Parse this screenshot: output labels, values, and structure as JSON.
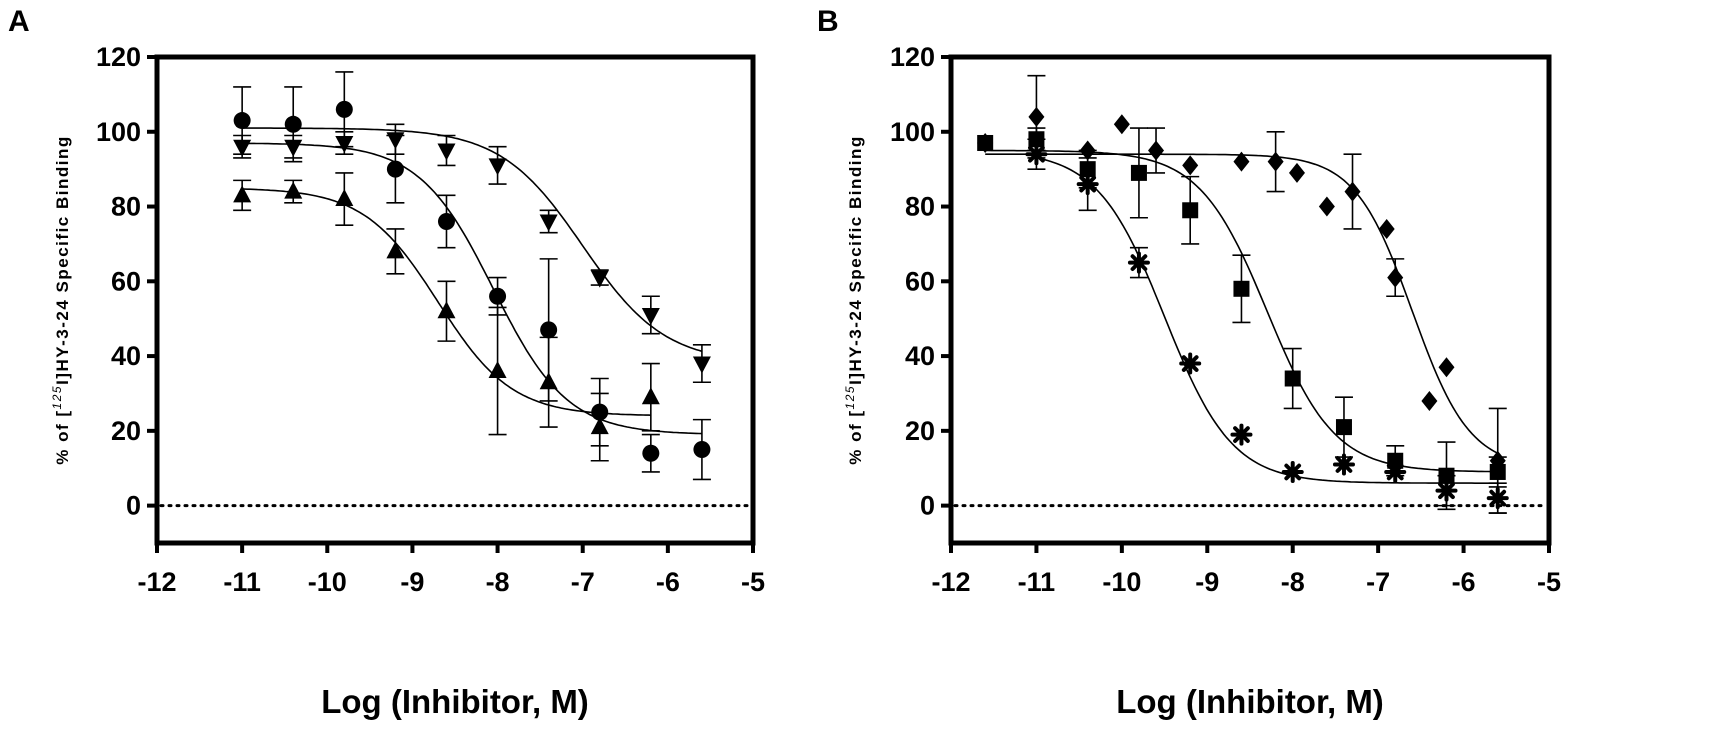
{
  "chart_data": [
    {
      "panel": "A",
      "type": "scatter",
      "xlabel": "Log (Inhibitor, M)",
      "ylabel_parts": {
        "prefix": "% of [",
        "superscript": "125",
        "suffix": "I]HY-3-24 Specific Binding"
      },
      "xlim": [
        -12,
        -5
      ],
      "ylim": [
        -10,
        120
      ],
      "xticks": [
        -12,
        -11,
        -10,
        -9,
        -8,
        -7,
        -6,
        -5
      ],
      "yticks": [
        0,
        20,
        40,
        60,
        80,
        100,
        120
      ],
      "xtick_labels": [
        "-12",
        "-11",
        "-10",
        "-9",
        "-8",
        "-7",
        "-6",
        "-5"
      ],
      "ytick_labels": [
        "0",
        "20",
        "40",
        "60",
        "80",
        "100",
        "120"
      ],
      "reference_line": {
        "y": 0,
        "style": "dotted"
      },
      "series": [
        {
          "name": "circle",
          "marker": "circle",
          "x": [
            -11.0,
            -10.4,
            -9.8,
            -9.2,
            -8.6,
            -8.0,
            -7.4,
            -6.8,
            -6.2,
            -5.6
          ],
          "y": [
            103,
            102,
            106,
            90,
            76,
            56,
            47,
            25,
            14,
            15
          ],
          "err": [
            9,
            10,
            10,
            9,
            7,
            5,
            19,
            9,
            5,
            8
          ],
          "fit": {
            "top": 97,
            "bottom": 19,
            "logIC50": -8.05,
            "hill": 1.0
          }
        },
        {
          "name": "triangle-down",
          "marker": "triangle-down",
          "x": [
            -11.0,
            -10.4,
            -9.8,
            -9.2,
            -8.6,
            -8.0,
            -7.4,
            -6.8,
            -6.2,
            -5.6
          ],
          "y": [
            96,
            96,
            97,
            98,
            95,
            91,
            76,
            61,
            51,
            38
          ],
          "err": [
            3,
            3,
            3,
            4,
            4,
            5,
            3,
            2,
            5,
            5
          ],
          "fit": {
            "top": 101,
            "bottom": 38,
            "logIC50": -7.0,
            "hill": 0.9
          }
        },
        {
          "name": "triangle-up",
          "marker": "triangle-up",
          "x": [
            -11.0,
            -10.4,
            -9.8,
            -9.2,
            -8.6,
            -8.0,
            -7.4,
            -6.8,
            -6.2
          ],
          "y": [
            83,
            84,
            82,
            68,
            52,
            36,
            33,
            21,
            29
          ],
          "err": [
            4,
            3,
            7,
            6,
            8,
            17,
            12,
            9,
            9
          ],
          "fit": {
            "top": 85,
            "bottom": 24,
            "logIC50": -8.7,
            "hill": 1.0
          }
        }
      ]
    },
    {
      "panel": "B",
      "type": "scatter",
      "xlabel": "Log (Inhibitor, M)",
      "ylabel_parts": {
        "prefix": "% of [",
        "superscript": "125",
        "suffix": "I]HY-3-24 Specific Binding"
      },
      "xlim": [
        -12,
        -5
      ],
      "ylim": [
        -10,
        120
      ],
      "xticks": [
        -12,
        -11,
        -10,
        -9,
        -8,
        -7,
        -6,
        -5
      ],
      "yticks": [
        0,
        20,
        40,
        60,
        80,
        100,
        120
      ],
      "xtick_labels": [
        "-12",
        "-11",
        "-10",
        "-9",
        "-8",
        "-7",
        "-6",
        "-5"
      ],
      "ytick_labels": [
        "0",
        "20",
        "40",
        "60",
        "80",
        "100",
        "120"
      ],
      "reference_line": {
        "y": 0,
        "style": "dotted"
      },
      "series": [
        {
          "name": "asterisk",
          "marker": "star",
          "x": [
            -11.0,
            -10.4,
            -9.8,
            -9.2,
            -8.6,
            -8.0,
            -7.4,
            -6.8,
            -6.2,
            -5.6
          ],
          "y": [
            94,
            86,
            65,
            38,
            19,
            9,
            11,
            9,
            4,
            2
          ],
          "err": [
            4,
            7,
            4,
            0,
            0,
            0,
            0,
            0,
            4,
            4
          ],
          "fit": {
            "top": 95,
            "bottom": 6,
            "logIC50": -9.5,
            "hill": 1.1
          }
        },
        {
          "name": "square",
          "marker": "square",
          "x": [
            -11.6,
            -11.0,
            -10.4,
            -9.8,
            -9.2,
            -8.6,
            -8.0,
            -7.4,
            -6.8,
            -6.2,
            -5.6
          ],
          "y": [
            97,
            98,
            90,
            89,
            79,
            58,
            34,
            21,
            12,
            8,
            9
          ],
          "err": [
            0,
            3,
            5,
            12,
            9,
            9,
            8,
            8,
            4,
            9,
            4
          ],
          "fit": {
            "top": 95,
            "bottom": 9,
            "logIC50": -8.3,
            "hill": 1.1
          }
        },
        {
          "name": "diamond",
          "marker": "diamond",
          "x": [
            -11.6,
            -11.0,
            -10.4,
            -10.0,
            -9.6,
            -9.2,
            -8.6,
            -8.2,
            -7.95,
            -7.6,
            -7.3,
            -6.9,
            -6.8,
            -6.4,
            -6.2,
            -5.6
          ],
          "y": [
            97,
            104,
            95,
            102,
            95,
            91,
            92,
            92,
            89,
            80,
            84,
            74,
            61,
            28,
            37,
            12
          ],
          "err": [
            0,
            11,
            0,
            0,
            6,
            0,
            0,
            8,
            0,
            0,
            10,
            0,
            5,
            0,
            0,
            14
          ],
          "fit": {
            "top": 94,
            "bottom": 10,
            "logIC50": -6.6,
            "hill": 1.3
          }
        }
      ]
    }
  ]
}
